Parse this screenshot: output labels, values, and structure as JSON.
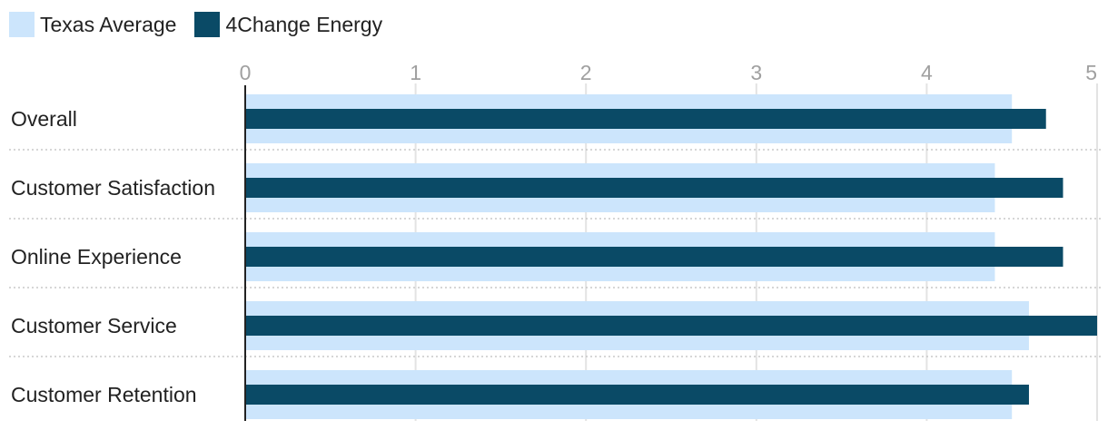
{
  "chart_data": {
    "type": "bar",
    "orientation": "horizontal",
    "categories": [
      "Overall",
      "Customer Satisfaction",
      "Online Experience",
      "Customer Service",
      "Customer Retention"
    ],
    "series": [
      {
        "name": "Texas Average",
        "color": "#cce5fc",
        "values": [
          4.5,
          4.4,
          4.4,
          4.6,
          4.5
        ]
      },
      {
        "name": "4Change Energy",
        "color": "#0a4a66",
        "values": [
          4.7,
          4.8,
          4.8,
          5.0,
          4.6
        ]
      }
    ],
    "xlim": [
      0,
      5
    ],
    "xticks": [
      "0",
      "1",
      "2",
      "3",
      "4",
      "5"
    ],
    "legend_position": "top-left",
    "grid": true
  }
}
